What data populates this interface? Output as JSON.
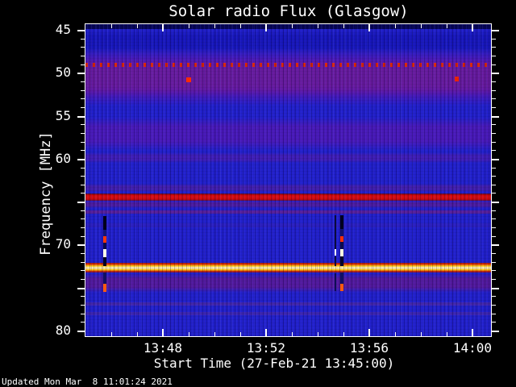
{
  "title": "Solar radio Flux (Glasgow)",
  "footer": {
    "updated_text": "Updated Mon Mar  8 11:01:24 2021"
  },
  "chart_data": {
    "type": "heatmap",
    "title": "Solar radio Flux (Glasgow)",
    "xlabel": "Start Time (27-Feb-21 13:45:00)",
    "ylabel": "Frequency [MHz]",
    "x_start_time": "13:45:00",
    "x_date": "27-Feb-21",
    "time_span_minutes": 15.72,
    "freq_min": 44.34,
    "freq_max": 80.66,
    "y_axis_inverted_note": "45 MHz at top, 80 MHz at bottom",
    "background_color": "#2120cb",
    "x_tick_labels": [
      {
        "label": "13:48",
        "t": 3
      },
      {
        "label": "13:52",
        "t": 7
      },
      {
        "label": "13:56",
        "t": 11
      },
      {
        "label": "14:00",
        "t": 15
      }
    ],
    "x_minor_ticks_minutes": [
      1,
      2,
      4,
      5,
      6,
      8,
      9,
      10,
      12,
      13,
      14
    ],
    "y_major_ticks_mhz": [
      45,
      50,
      55,
      60,
      65,
      70,
      75,
      80
    ],
    "y_tick_labels": [
      {
        "label": "45",
        "mhz": 45
      },
      {
        "label": "50",
        "mhz": 50
      },
      {
        "label": "55",
        "mhz": 55
      },
      {
        "label": "60",
        "mhz": 60
      },
      {
        "label": "70",
        "mhz": 70
      },
      {
        "label": "80",
        "mhz": 80
      }
    ],
    "bands": [
      {
        "f1": 44.34,
        "f2": 44.95,
        "color": "#000038",
        "opacity": 0.8
      },
      {
        "f1": 44.95,
        "f2": 47.8,
        "color": "#0d0da8",
        "opacity": 0.5,
        "soft": true
      },
      {
        "f1": 47.2,
        "f2": 53.8,
        "color": "#6c12a6",
        "opacity": 0.8,
        "soft": true
      },
      {
        "f1": 48.5,
        "f2": 52.7,
        "color": "#73208c",
        "opacity": 0.5,
        "soft": true
      },
      {
        "f1": 48.86,
        "f2": 49.35,
        "color": "#e02800",
        "dotted": true
      },
      {
        "f1": 55.1,
        "f2": 59.1,
        "color": "#5a16b0",
        "opacity": 0.7,
        "soft": true
      },
      {
        "f1": 59.3,
        "f2": 60.5,
        "color": "#531ba8",
        "opacity": 0.6,
        "soft": true
      },
      {
        "f1": 62.9,
        "f2": 63.85,
        "color": "#4f1d9e",
        "opacity": 0.7,
        "soft": true
      },
      {
        "f1": 64.05,
        "f2": 64.85,
        "stops": [
          [
            "#44102f",
            0
          ],
          [
            "#cc0505",
            20
          ],
          [
            "#e31010",
            50
          ],
          [
            "#c50505",
            82
          ],
          [
            "#5c1350",
            100
          ]
        ]
      },
      {
        "f1": 64.9,
        "f2": 65.75,
        "color": "#5a1a92",
        "opacity": 0.75,
        "soft": true
      },
      {
        "f1": 66.05,
        "f2": 66.42,
        "color": "#6d2086",
        "opacity": 0.7
      },
      {
        "f1": 67.55,
        "f2": 68.0,
        "color": "#3a1fae",
        "opacity": 0.4
      },
      {
        "f1": 72.15,
        "f2": 73.28,
        "stops": [
          [
            "#8c1203",
            0
          ],
          [
            "#e93404",
            14
          ],
          [
            "#ffc906",
            32
          ],
          [
            "#fffadc",
            52
          ],
          [
            "#ffc906",
            72
          ],
          [
            "#d32603",
            88
          ],
          [
            "#6e1148",
            100
          ]
        ]
      },
      {
        "f1": 73.3,
        "f2": 75.6,
        "color": "#5c1894",
        "opacity": 0.85,
        "soft": true
      },
      {
        "f1": 76.75,
        "f2": 77.12,
        "color": "#532a9e",
        "opacity": 0.65
      },
      {
        "f1": 77.85,
        "f2": 78.22,
        "color": "#532a9e",
        "opacity": 0.55
      }
    ],
    "bursts": [
      {
        "t": 0.75,
        "width": 4,
        "segments": [
          [
            66.64,
            68.24,
            "#00001c"
          ],
          [
            68.24,
            69.05,
            "#141478"
          ],
          [
            69.05,
            69.75,
            "#ff3808"
          ],
          [
            69.75,
            70.55,
            "#0b0b4e"
          ],
          [
            70.55,
            71.45,
            "#fffbe8"
          ],
          [
            71.45,
            72.45,
            "#04041f"
          ],
          [
            73.28,
            74.6,
            "#101066"
          ],
          [
            74.6,
            75.5,
            "#ff5a10"
          ]
        ]
      },
      {
        "t": 9.7,
        "width": 2,
        "segments": [
          [
            66.6,
            70.5,
            "#0a0a3a"
          ],
          [
            70.55,
            71.3,
            "#ffffff"
          ],
          [
            71.35,
            72.45,
            "#0a0a3a"
          ],
          [
            73.3,
            75.4,
            "#0d0d55"
          ]
        ]
      },
      {
        "t": 9.95,
        "width": 4,
        "segments": [
          [
            66.6,
            68.2,
            "#000020"
          ],
          [
            68.2,
            69.0,
            "#12126e"
          ],
          [
            69.0,
            69.7,
            "#ff2e06"
          ],
          [
            69.7,
            70.5,
            "#0b0b4e"
          ],
          [
            70.5,
            71.4,
            "#fff8e0"
          ],
          [
            71.4,
            72.45,
            "#05052a"
          ],
          [
            73.28,
            74.55,
            "#101066"
          ],
          [
            74.55,
            75.45,
            "#ff5a10"
          ]
        ]
      }
    ],
    "blobs": [
      {
        "t": 4.0,
        "f": 50.8,
        "w": 6,
        "h": 6,
        "color": "#ff2b00"
      },
      {
        "t": 14.38,
        "f": 50.7,
        "w": 5,
        "h": 6,
        "color": "#e82300"
      }
    ],
    "axis_color": "#ffffff"
  }
}
